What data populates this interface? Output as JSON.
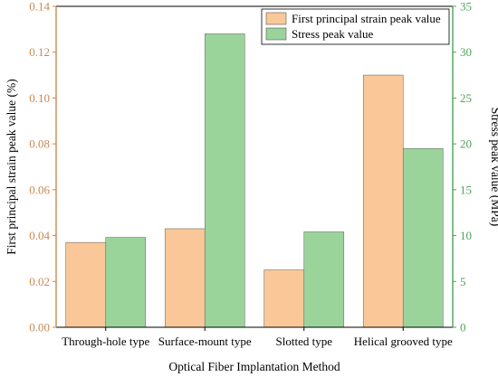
{
  "chart_data": {
    "type": "bar",
    "title": "",
    "xlabel": "Optical Fiber Implantation Method",
    "categories": [
      "Through-hole type",
      "Surface-mount type",
      "Slotted type",
      "Helical grooved type"
    ],
    "y_left": {
      "label": "First principal strain peak value (%)",
      "lim": [
        0,
        0.14
      ],
      "ticks": [
        0.0,
        0.02,
        0.04,
        0.06,
        0.08,
        0.1,
        0.12,
        0.14
      ],
      "tick_labels": [
        "0.00",
        "0.02",
        "0.04",
        "0.06",
        "0.08",
        "0.10",
        "0.12",
        "0.14"
      ],
      "color": "#c98a52"
    },
    "y_right": {
      "label": "Stress peak value (MPa)",
      "lim": [
        0,
        35
      ],
      "ticks": [
        0,
        5,
        10,
        15,
        20,
        25,
        30,
        35
      ],
      "tick_labels": [
        "0",
        "5",
        "10",
        "15",
        "20",
        "25",
        "30",
        "35"
      ],
      "color": "#4fa35a"
    },
    "series": [
      {
        "name": "First principal strain peak value",
        "axis": "left",
        "values": [
          0.037,
          0.043,
          0.025,
          0.11
        ],
        "color": "#fac898"
      },
      {
        "name": "Stress peak value",
        "axis": "right",
        "values": [
          9.8,
          32.0,
          10.4,
          19.5
        ],
        "color": "#9bd49b"
      }
    ],
    "legend": "top-right",
    "grid": false
  }
}
